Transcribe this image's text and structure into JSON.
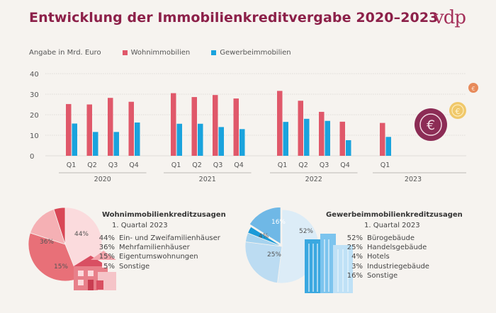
{
  "title": "Entwicklung der Immobilienkreditvergabe 2020–2023",
  "logo": "vdp",
  "colors": {
    "wohn": "#e0586a",
    "gewerbe": "#1aa3dd",
    "title": "#8c2049",
    "axis": "#9a9a9a"
  },
  "chart_data": [
    {
      "type": "bar",
      "unit_label": "Angabe in Mrd. Euro",
      "ylim": [
        0,
        40
      ],
      "yticks": [
        "0",
        "10",
        "20",
        "30",
        "40"
      ],
      "grid": true,
      "legend": "top-left",
      "categories": [
        "Q1",
        "Q2",
        "Q3",
        "Q4",
        "Q1",
        "Q2",
        "Q3",
        "Q4",
        "Q1",
        "Q2",
        "Q3",
        "Q4",
        "Q1"
      ],
      "groups": [
        {
          "label": "2020",
          "count": 4
        },
        {
          "label": "2021",
          "count": 4
        },
        {
          "label": "2022",
          "count": 4
        },
        {
          "label": "2023",
          "count": 1
        }
      ],
      "series": [
        {
          "name": "Wohnimmobilien",
          "color": "#e0586a",
          "values": [
            25.2,
            25.0,
            28.2,
            26.3,
            30.5,
            28.6,
            29.6,
            27.9,
            31.6,
            26.8,
            21.4,
            16.6,
            16.0
          ]
        },
        {
          "name": "Gewerbeimmobilien",
          "color": "#1aa3dd",
          "values": [
            15.7,
            11.6,
            11.6,
            16.2,
            15.6,
            15.6,
            14.0,
            13.0,
            16.5,
            18.0,
            17.0,
            7.6,
            9.2
          ]
        }
      ]
    },
    {
      "type": "pie",
      "title": "Wohnimmobilienkreditzusagen",
      "subtitle": "1. Quartal 2023",
      "slices": [
        {
          "value": 44,
          "label": "Ein- und Zweifamilienhäuser",
          "pct_text": "44%",
          "color": "#fbdbdd"
        },
        {
          "value": 36,
          "label": "Mehrfamilienhäuser",
          "pct_text": "36%",
          "color": "#e87078"
        },
        {
          "value": 15,
          "label": "Eigentumswohnungen",
          "pct_text": "15%",
          "color": "#f5b0b4"
        },
        {
          "value": 5,
          "label": "Sonstige",
          "pct_text": "5%",
          "color": "#d94756"
        }
      ]
    },
    {
      "type": "pie",
      "title": "Gewerbeimmobilienkreditzusagen",
      "subtitle": "1. Quartal 2023",
      "slices": [
        {
          "value": 52,
          "label": "Bürogebäude",
          "pct_text": "52%",
          "color": "#dcecf7"
        },
        {
          "value": 25,
          "label": "Handelsgebäude",
          "pct_text": "25%",
          "color": "#bcdcf2"
        },
        {
          "value": 4,
          "label": "Hotels",
          "pct_text": "4%",
          "color": "#a6d3ef"
        },
        {
          "value": 3,
          "label": "Industriegebäude",
          "pct_text": "3%",
          "color": "#1a9ad8"
        },
        {
          "value": 16,
          "label": "Sonstige",
          "pct_text": "16%",
          "color": "#6fb8e6"
        }
      ]
    }
  ]
}
